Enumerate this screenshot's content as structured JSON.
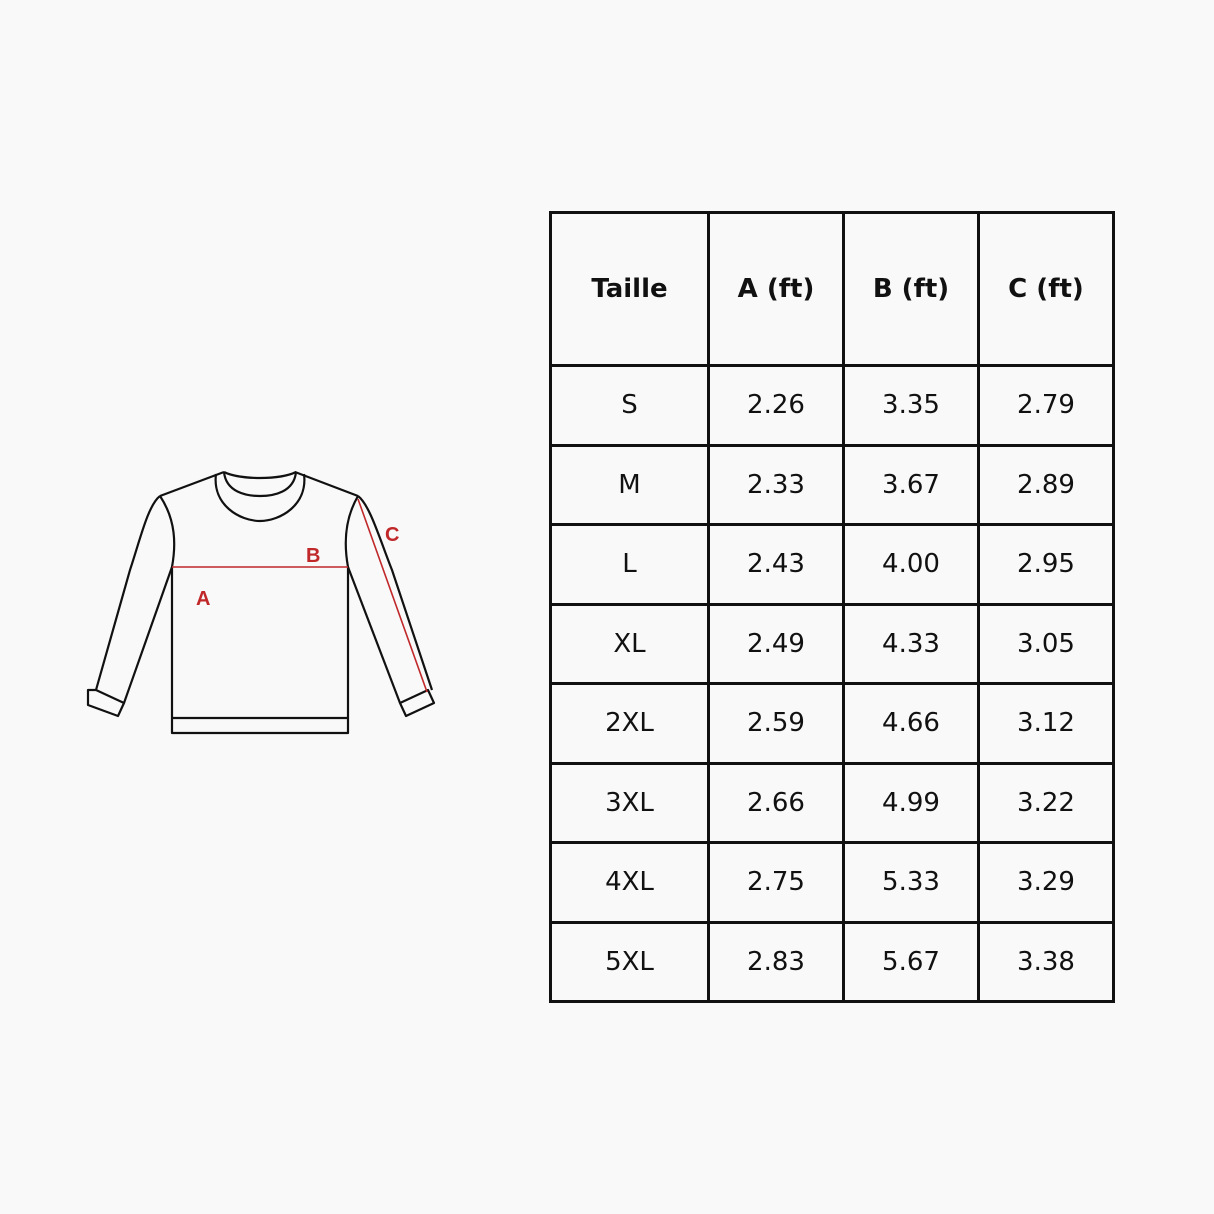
{
  "diagram": {
    "labels": {
      "a": "A",
      "b": "B",
      "c": "C"
    },
    "accent_color": "#c0282a",
    "outline_color": "#111111"
  },
  "table": {
    "headers": [
      "Taille",
      "A (ft)",
      "B (ft)",
      "C (ft)"
    ],
    "rows": [
      [
        "S",
        "2.26",
        "3.35",
        "2.79"
      ],
      [
        "M",
        "2.33",
        "3.67",
        "2.89"
      ],
      [
        "L",
        "2.43",
        "4.00",
        "2.95"
      ],
      [
        "XL",
        "2.49",
        "4.33",
        "3.05"
      ],
      [
        "2XL",
        "2.59",
        "4.66",
        "3.12"
      ],
      [
        "3XL",
        "2.66",
        "4.99",
        "3.22"
      ],
      [
        "4XL",
        "2.75",
        "5.33",
        "3.29"
      ],
      [
        "5XL",
        "2.83",
        "5.67",
        "3.38"
      ]
    ]
  }
}
